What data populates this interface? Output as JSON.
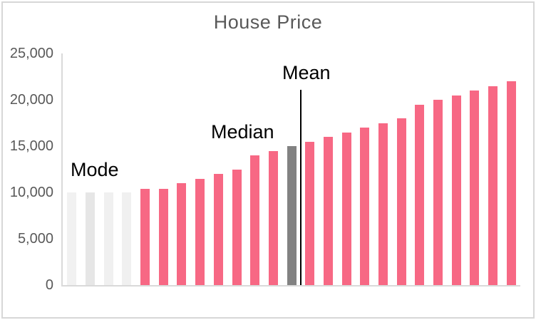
{
  "chart_data": {
    "type": "bar",
    "title": "House Price",
    "xlabel": "",
    "ylabel": "",
    "ylim": [
      0,
      25000
    ],
    "y_ticks": [
      "25,000",
      "20,000",
      "15,000",
      "10,000",
      "5,000",
      "0"
    ],
    "grid": false,
    "legend": false,
    "values": [
      10000,
      10000,
      10000,
      10000,
      10400,
      10400,
      11000,
      11500,
      12000,
      12500,
      14000,
      14500,
      15000,
      15500,
      16000,
      16500,
      17000,
      17500,
      18000,
      19500,
      20000,
      20500,
      21000,
      21500,
      22000
    ],
    "mode_indices": [
      0,
      1,
      2,
      3
    ],
    "median_index": 12,
    "mean_line_after_index": 12,
    "annotations": {
      "mode": "Mode",
      "median": "Median",
      "mean": "Mean"
    },
    "colors": {
      "bar": "#F76884",
      "mode_bars": [
        "#F1F1F1",
        "#E6E6E6",
        "#F0F0F0",
        "#F0F0F0"
      ],
      "median_bar": "#828282",
      "axis": "#D9D9D9",
      "tick_text": "#595959",
      "title_text": "#595959",
      "annotation_text": "#000000",
      "mean_line": "#000000",
      "frame": "#D7D7D7"
    }
  }
}
